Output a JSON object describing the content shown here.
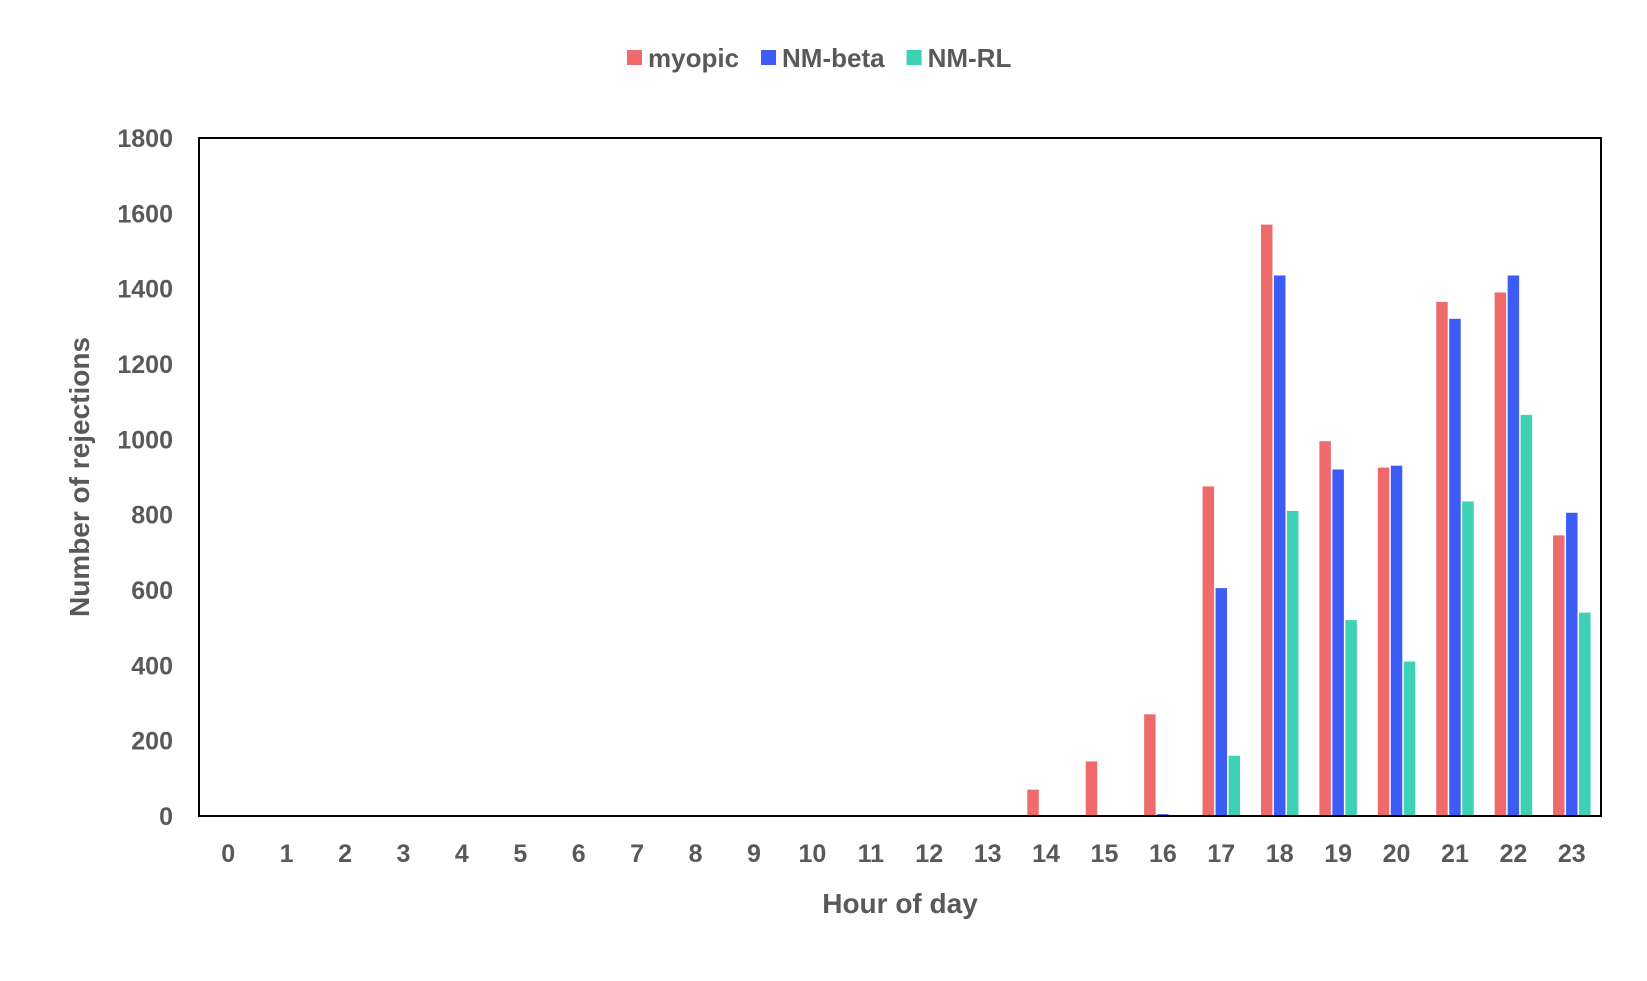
{
  "chart_data": {
    "type": "bar",
    "title": "",
    "xlabel": "Hour of day",
    "ylabel": "Number of rejections",
    "ylim": [
      0,
      1800
    ],
    "yticks": [
      "0",
      "200",
      "400",
      "600",
      "800",
      "1000",
      "1200",
      "1400",
      "1600",
      "1800"
    ],
    "grid": false,
    "legend_position": "top-center",
    "categories": [
      "0",
      "1",
      "2",
      "3",
      "4",
      "5",
      "6",
      "7",
      "8",
      "9",
      "10",
      "11",
      "12",
      "13",
      "14",
      "15",
      "16",
      "17",
      "18",
      "19",
      "20",
      "21",
      "22",
      "23"
    ],
    "series": [
      {
        "name": "myopic",
        "color": "#EF6B6B",
        "values": [
          0,
          0,
          0,
          0,
          0,
          0,
          0,
          0,
          0,
          0,
          0,
          0,
          0,
          0,
          70,
          145,
          270,
          875,
          1570,
          995,
          925,
          1365,
          1390,
          745
        ]
      },
      {
        "name": "NM-beta",
        "color": "#3D5BF5",
        "values": [
          0,
          0,
          0,
          0,
          0,
          0,
          0,
          0,
          0,
          0,
          0,
          0,
          0,
          0,
          0,
          0,
          5,
          605,
          1435,
          920,
          930,
          1320,
          1435,
          805
        ]
      },
      {
        "name": "NM-RL",
        "color": "#3DD1B5",
        "values": [
          0,
          0,
          0,
          0,
          0,
          0,
          0,
          0,
          0,
          0,
          0,
          0,
          0,
          0,
          0,
          0,
          0,
          160,
          810,
          520,
          410,
          835,
          1065,
          540
        ]
      }
    ]
  }
}
